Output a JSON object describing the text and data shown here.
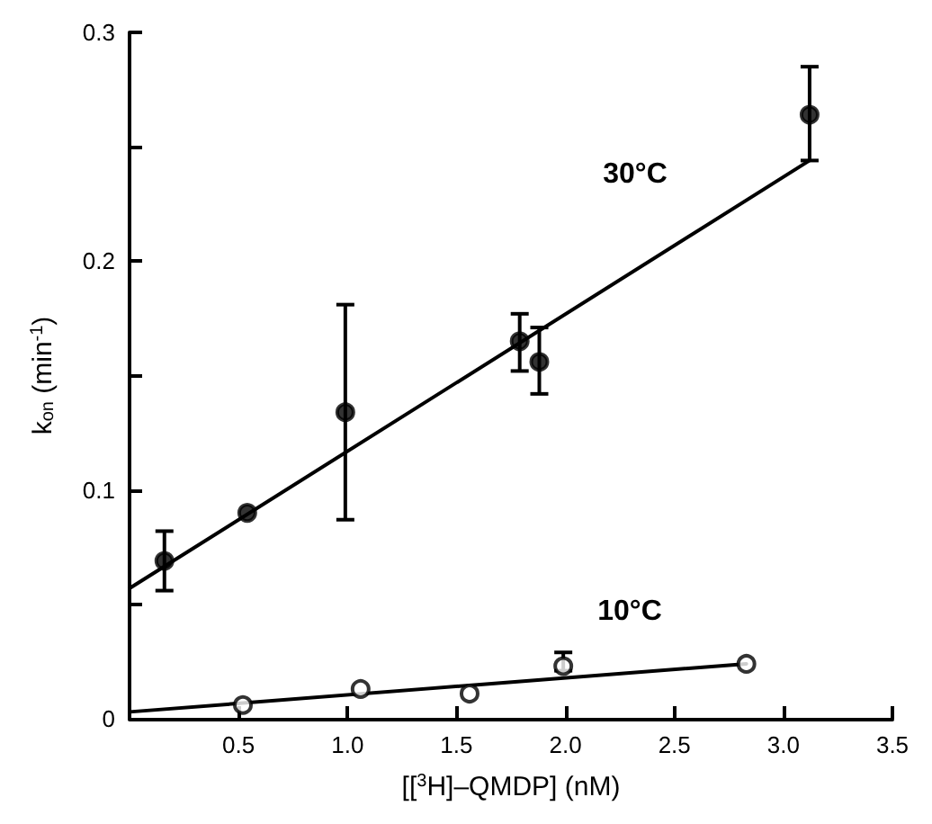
{
  "chart_data": {
    "type": "scatter",
    "xlabel": "[[$^{3}$H]–QMDP] (nM)",
    "ylabel": "k$_{on}$ (min$^{-1}$)",
    "xlim": [
      0,
      3.5
    ],
    "ylim": [
      0,
      0.3
    ],
    "xticks": [
      0.5,
      {
        "value": 1,
        "label": "1.0"
      },
      1.5,
      {
        "value": 2,
        "label": "2.0"
      },
      2.5,
      {
        "value": 3,
        "label": "3.0"
      },
      3.5
    ],
    "yticks": [
      0,
      {
        "value": 0.05,
        "label": null
      },
      0.1,
      {
        "value": 0.15,
        "label": null
      },
      0.2,
      {
        "value": 0.25,
        "label": null
      },
      0.3
    ],
    "grid": false,
    "marker": "circle",
    "series": [
      {
        "color": "#000000",
        "x": [
          0.16,
          0.54,
          0.99,
          1.79,
          1.88,
          3.12
        ],
        "values": [
          0.069,
          0.09,
          0.134,
          0.165,
          0.156,
          0.264
        ],
        "errors": [
          [
            0.056,
            0.082
          ],
          null,
          [
            0.087,
            0.181
          ],
          [
            0.152,
            0.177
          ],
          [
            0.142,
            0.171
          ],
          [
            0.244,
            0.285
          ]
        ]
      },
      {
        "color": "#ffffff",
        "x": [
          0.52,
          1.06,
          1.56,
          1.99,
          2.83
        ],
        "values": [
          0.006,
          0.013,
          0.011,
          0.023,
          0.024
        ],
        "errors": [
          null,
          null,
          null,
          [
            0.021,
            0.029
          ],
          null
        ]
      },
      {
        "type": "line",
        "color": "#000000",
        "marker": "none",
        "line_style": "solid",
        "x": [
          0,
          3.12
        ],
        "values": [
          0.057,
          0.244
        ]
      },
      {
        "type": "line",
        "color": "#000000",
        "marker": "none",
        "line_style": "solid",
        "x": [
          0,
          2.83
        ],
        "values": [
          0.003,
          0.024
        ]
      }
    ],
    "annotations": [
      "30°C",
      "10°C"
    ]
  }
}
